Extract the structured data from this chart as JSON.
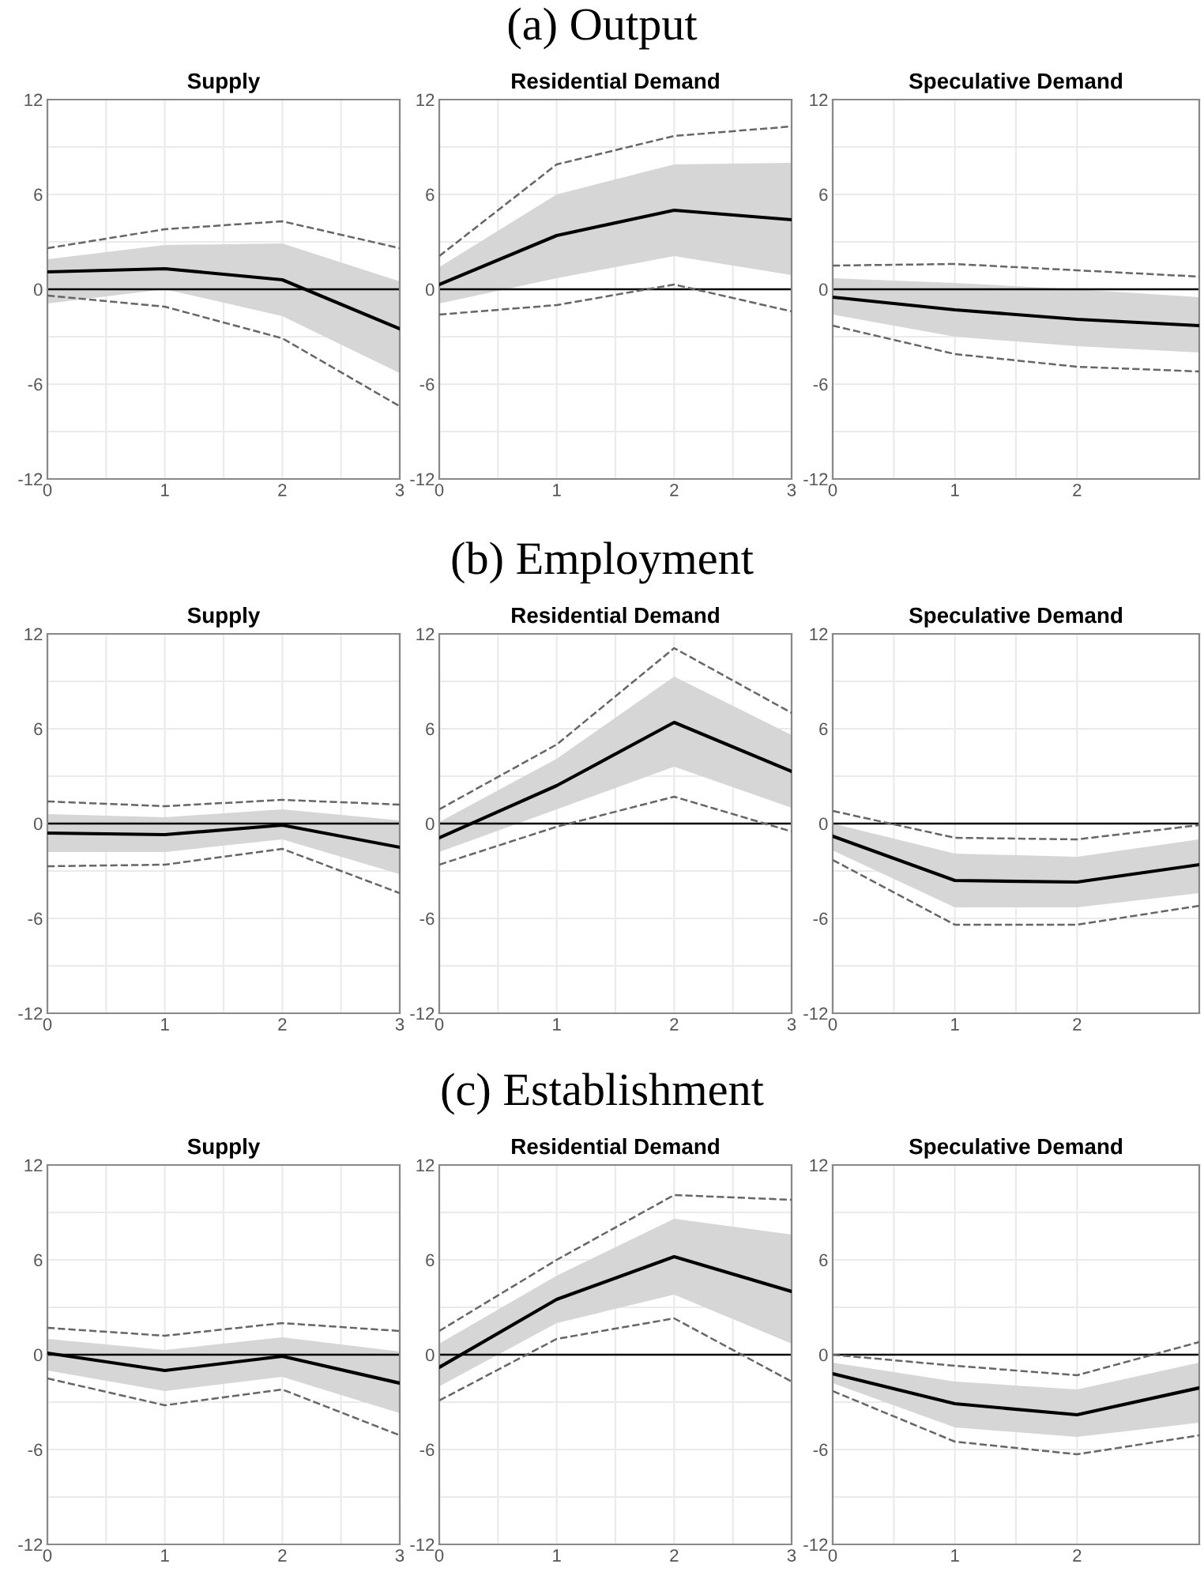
{
  "chart_data": [
    {
      "type": "line",
      "title": "Supply",
      "annotations": [
        "(a) Output"
      ],
      "x": [
        0,
        1,
        2,
        3
      ],
      "xlim": [
        0,
        3
      ],
      "xticks": [
        0,
        1,
        2,
        3
      ],
      "ylim": [
        -12,
        12
      ],
      "yticks": [
        -12,
        -6,
        0,
        6,
        12
      ],
      "grid": true,
      "ref_lines": [
        {
          "axis": "y",
          "value": 0,
          "color": "#000000"
        }
      ],
      "series": [
        {
          "color": "#000000",
          "values": [
            1.1,
            1.3,
            0.6,
            -2.5
          ],
          "lower": [
            -0.9,
            0.0,
            -1.7,
            -5.3
          ],
          "upper": [
            1.9,
            2.8,
            2.9,
            0.5
          ]
        },
        {
          "color": "#666666",
          "line_style": "dashed",
          "values": [
            2.6,
            3.8,
            4.3,
            2.6
          ]
        },
        {
          "color": "#666666",
          "line_style": "dashed",
          "values": [
            -0.4,
            -1.1,
            -3.1,
            -7.4
          ]
        }
      ]
    },
    {
      "type": "line",
      "title": "Residential Demand",
      "x": [
        0,
        1,
        2,
        3
      ],
      "xlim": [
        0,
        3
      ],
      "xticks": [
        0,
        1,
        2,
        3
      ],
      "ylim": [
        -12,
        12
      ],
      "yticks": [
        -12,
        -6,
        0,
        6,
        12
      ],
      "grid": true,
      "ref_lines": [
        {
          "axis": "y",
          "value": 0,
          "color": "#000000"
        }
      ],
      "series": [
        {
          "color": "#000000",
          "values": [
            0.3,
            3.4,
            5.0,
            4.4
          ],
          "lower": [
            -0.9,
            0.7,
            2.1,
            0.9
          ],
          "upper": [
            1.4,
            6.0,
            7.9,
            8.0
          ]
        },
        {
          "color": "#666666",
          "line_style": "dashed",
          "values": [
            2.1,
            7.9,
            9.7,
            10.3
          ]
        },
        {
          "color": "#666666",
          "line_style": "dashed",
          "values": [
            -1.6,
            -1.0,
            0.3,
            -1.4
          ]
        }
      ]
    },
    {
      "type": "line",
      "title": "Speculative Demand",
      "x": [
        0,
        1,
        2,
        3
      ],
      "xlim": [
        0,
        3
      ],
      "xticks": [
        0,
        1,
        2
      ],
      "ylim": [
        -12,
        12
      ],
      "yticks": [
        -12,
        -6,
        0,
        6,
        12
      ],
      "grid": true,
      "ref_lines": [
        {
          "axis": "y",
          "value": 0,
          "color": "#000000"
        }
      ],
      "series": [
        {
          "color": "#000000",
          "values": [
            -0.5,
            -1.3,
            -1.9,
            -2.3
          ],
          "lower": [
            -1.6,
            -3.0,
            -3.6,
            -4.0
          ],
          "upper": [
            0.7,
            0.4,
            0.0,
            -0.5
          ]
        },
        {
          "color": "#666666",
          "line_style": "dashed",
          "values": [
            1.5,
            1.6,
            1.2,
            0.8
          ]
        },
        {
          "color": "#666666",
          "line_style": "dashed",
          "values": [
            -2.3,
            -4.1,
            -4.9,
            -5.2
          ]
        }
      ]
    },
    {
      "type": "line",
      "title": "Supply",
      "annotations": [
        "(b) Employment"
      ],
      "x": [
        0,
        1,
        2,
        3
      ],
      "xlim": [
        0,
        3
      ],
      "xticks": [
        0,
        1,
        2,
        3
      ],
      "ylim": [
        -12,
        12
      ],
      "yticks": [
        -12,
        -6,
        0,
        6,
        12
      ],
      "grid": true,
      "ref_lines": [
        {
          "axis": "y",
          "value": 0,
          "color": "#000000"
        }
      ],
      "series": [
        {
          "color": "#000000",
          "values": [
            -0.6,
            -0.7,
            -0.1,
            -1.5
          ],
          "lower": [
            -1.8,
            -1.8,
            -1.0,
            -3.2
          ],
          "upper": [
            0.6,
            0.4,
            0.9,
            0.2
          ]
        },
        {
          "color": "#666666",
          "line_style": "dashed",
          "values": [
            1.4,
            1.1,
            1.5,
            1.2
          ]
        },
        {
          "color": "#666666",
          "line_style": "dashed",
          "values": [
            -2.7,
            -2.6,
            -1.6,
            -4.4
          ]
        }
      ]
    },
    {
      "type": "line",
      "title": "Residential Demand",
      "x": [
        0,
        1,
        2,
        3
      ],
      "xlim": [
        0,
        3
      ],
      "xticks": [
        0,
        1,
        2,
        3
      ],
      "ylim": [
        -12,
        12
      ],
      "yticks": [
        -12,
        -6,
        0,
        6,
        12
      ],
      "grid": true,
      "ref_lines": [
        {
          "axis": "y",
          "value": 0,
          "color": "#000000"
        }
      ],
      "series": [
        {
          "color": "#000000",
          "values": [
            -0.9,
            2.4,
            6.4,
            3.3
          ],
          "lower": [
            -1.8,
            0.9,
            3.6,
            1.0
          ],
          "upper": [
            0.1,
            4.1,
            9.3,
            5.6
          ]
        },
        {
          "color": "#666666",
          "line_style": "dashed",
          "values": [
            0.9,
            5.0,
            11.1,
            7.0
          ]
        },
        {
          "color": "#666666",
          "line_style": "dashed",
          "values": [
            -2.6,
            -0.2,
            1.7,
            -0.5
          ]
        }
      ]
    },
    {
      "type": "line",
      "title": "Speculative Demand",
      "x": [
        0,
        1,
        2,
        3
      ],
      "xlim": [
        0,
        3
      ],
      "xticks": [
        0,
        1,
        2
      ],
      "ylim": [
        -12,
        12
      ],
      "yticks": [
        -12,
        -6,
        0,
        6,
        12
      ],
      "grid": true,
      "ref_lines": [
        {
          "axis": "y",
          "value": 0,
          "color": "#000000"
        }
      ],
      "series": [
        {
          "color": "#000000",
          "values": [
            -0.8,
            -3.6,
            -3.7,
            -2.6
          ],
          "lower": [
            -1.7,
            -5.3,
            -5.3,
            -4.4
          ],
          "upper": [
            0.0,
            -1.9,
            -2.1,
            -1.0
          ]
        },
        {
          "color": "#666666",
          "line_style": "dashed",
          "values": [
            0.8,
            -0.9,
            -1.0,
            -0.1
          ]
        },
        {
          "color": "#666666",
          "line_style": "dashed",
          "values": [
            -2.3,
            -6.4,
            -6.4,
            -5.2
          ]
        }
      ]
    },
    {
      "type": "line",
      "title": "Supply",
      "annotations": [
        "(c) Establishment"
      ],
      "x": [
        0,
        1,
        2,
        3
      ],
      "xlim": [
        0,
        3
      ],
      "xticks": [
        0,
        1,
        2,
        3
      ],
      "ylim": [
        -12,
        12
      ],
      "yticks": [
        -12,
        -6,
        0,
        6,
        12
      ],
      "grid": true,
      "ref_lines": [
        {
          "axis": "y",
          "value": 0,
          "color": "#000000"
        }
      ],
      "series": [
        {
          "color": "#000000",
          "values": [
            0.1,
            -1.0,
            -0.1,
            -1.8
          ],
          "lower": [
            -1.0,
            -2.3,
            -1.4,
            -3.7
          ],
          "upper": [
            1.0,
            0.3,
            1.1,
            0.2
          ]
        },
        {
          "color": "#666666",
          "line_style": "dashed",
          "values": [
            1.7,
            1.2,
            2.0,
            1.5
          ]
        },
        {
          "color": "#666666",
          "line_style": "dashed",
          "values": [
            -1.5,
            -3.2,
            -2.2,
            -5.1
          ]
        }
      ]
    },
    {
      "type": "line",
      "title": "Residential Demand",
      "x": [
        0,
        1,
        2,
        3
      ],
      "xlim": [
        0,
        3
      ],
      "xticks": [
        0,
        1,
        2,
        3
      ],
      "ylim": [
        -12,
        12
      ],
      "yticks": [
        -12,
        -6,
        0,
        6,
        12
      ],
      "grid": true,
      "ref_lines": [
        {
          "axis": "y",
          "value": 0,
          "color": "#000000"
        }
      ],
      "series": [
        {
          "color": "#000000",
          "values": [
            -0.8,
            3.5,
            6.2,
            4.0
          ],
          "lower": [
            -2.0,
            2.0,
            3.8,
            0.7
          ],
          "upper": [
            0.7,
            5.0,
            8.6,
            7.6
          ]
        },
        {
          "color": "#666666",
          "line_style": "dashed",
          "values": [
            1.5,
            6.0,
            10.1,
            9.8
          ]
        },
        {
          "color": "#666666",
          "line_style": "dashed",
          "values": [
            -2.9,
            1.0,
            2.3,
            -1.7
          ]
        }
      ]
    },
    {
      "type": "line",
      "title": "Speculative Demand",
      "x": [
        0,
        1,
        2,
        3
      ],
      "xlim": [
        0,
        3
      ],
      "xticks": [
        0,
        1,
        2
      ],
      "ylim": [
        -12,
        12
      ],
      "yticks": [
        -12,
        -6,
        0,
        6,
        12
      ],
      "grid": true,
      "ref_lines": [
        {
          "axis": "y",
          "value": 0,
          "color": "#000000"
        }
      ],
      "series": [
        {
          "color": "#000000",
          "values": [
            -1.2,
            -3.1,
            -3.8,
            -2.1
          ],
          "lower": [
            -1.8,
            -4.6,
            -5.2,
            -4.3
          ],
          "upper": [
            -0.5,
            -1.7,
            -2.2,
            -0.5
          ]
        },
        {
          "color": "#666666",
          "line_style": "dashed",
          "values": [
            0.0,
            -0.7,
            -1.3,
            0.8
          ]
        },
        {
          "color": "#666666",
          "line_style": "dashed",
          "values": [
            -2.3,
            -5.5,
            -6.3,
            -5.1
          ]
        }
      ]
    }
  ]
}
